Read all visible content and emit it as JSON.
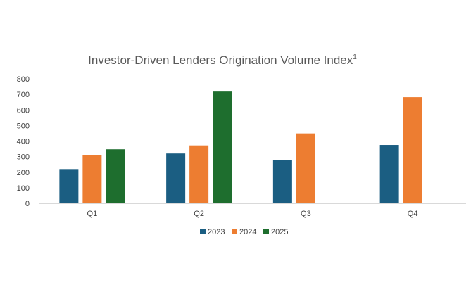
{
  "chart_data": {
    "type": "bar",
    "title": "Investor-Driven Lenders Origination Volume Index",
    "title_superscript": "1",
    "xlabel": "",
    "ylabel": "",
    "ylim": [
      0,
      800
    ],
    "yticks": [
      0,
      100,
      200,
      300,
      400,
      500,
      600,
      700,
      800
    ],
    "grid": false,
    "legend_position": "bottom",
    "categories": [
      "Q1",
      "Q2",
      "Q3",
      "Q4"
    ],
    "series": [
      {
        "name": "2023",
        "color": "#1b5e82",
        "values": [
          220,
          320,
          277,
          375
        ]
      },
      {
        "name": "2024",
        "color": "#ed7d31",
        "values": [
          310,
          372,
          449,
          682
        ]
      },
      {
        "name": "2025",
        "color": "#1e6e2e",
        "values": [
          347,
          718,
          null,
          null
        ]
      }
    ]
  }
}
